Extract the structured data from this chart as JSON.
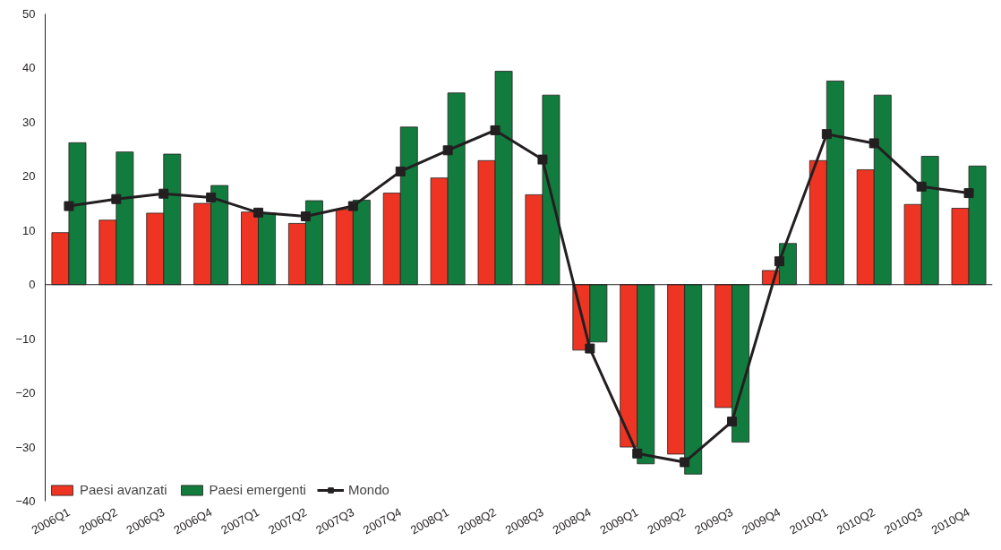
{
  "chart_data": {
    "type": "bar",
    "categories": [
      "2006Q1",
      "2006Q2",
      "2006Q3",
      "2006Q4",
      "2007Q1",
      "2007Q2",
      "2007Q3",
      "2007Q4",
      "2008Q1",
      "2008Q2",
      "2008Q3",
      "2008Q4",
      "2009Q1",
      "2009Q2",
      "2009Q3",
      "2009Q4",
      "2010Q1",
      "2010Q2",
      "2010Q3",
      "2010Q4"
    ],
    "series": [
      {
        "name": "Paesi avanzati",
        "color": "#ee3524",
        "values": [
          9.6,
          11.9,
          13.2,
          15.0,
          13.4,
          11.3,
          13.9,
          16.9,
          19.7,
          22.9,
          16.6,
          -12.1,
          -30.0,
          -31.3,
          -22.7,
          2.6,
          22.9,
          21.2,
          14.8,
          14.1
        ]
      },
      {
        "name": "Paesi emergenti",
        "color": "#127c3e",
        "values": [
          26.2,
          24.5,
          24.1,
          18.3,
          13.2,
          15.5,
          15.6,
          29.1,
          35.4,
          39.4,
          35.0,
          -10.6,
          -33.1,
          -35.0,
          -29.1,
          7.6,
          37.6,
          35.0,
          23.7,
          21.9
        ]
      },
      {
        "name": "Mondo",
        "type": "line",
        "color": "#231f20",
        "marker": "square",
        "values": [
          14.5,
          15.8,
          16.8,
          16.1,
          13.3,
          12.6,
          14.5,
          20.9,
          24.8,
          28.5,
          23.1,
          -11.8,
          -31.2,
          -32.8,
          -25.3,
          4.3,
          27.8,
          26.1,
          18.1,
          16.9
        ]
      }
    ],
    "ylim": [
      -40,
      50
    ],
    "yticks": [
      -40,
      -30,
      -20,
      -10,
      0,
      10,
      20,
      30,
      40,
      50
    ],
    "grid": false,
    "ref_lines": [
      {
        "axis": "y",
        "value": 0,
        "color": "#231f20"
      }
    ],
    "legend": "bottom left"
  }
}
